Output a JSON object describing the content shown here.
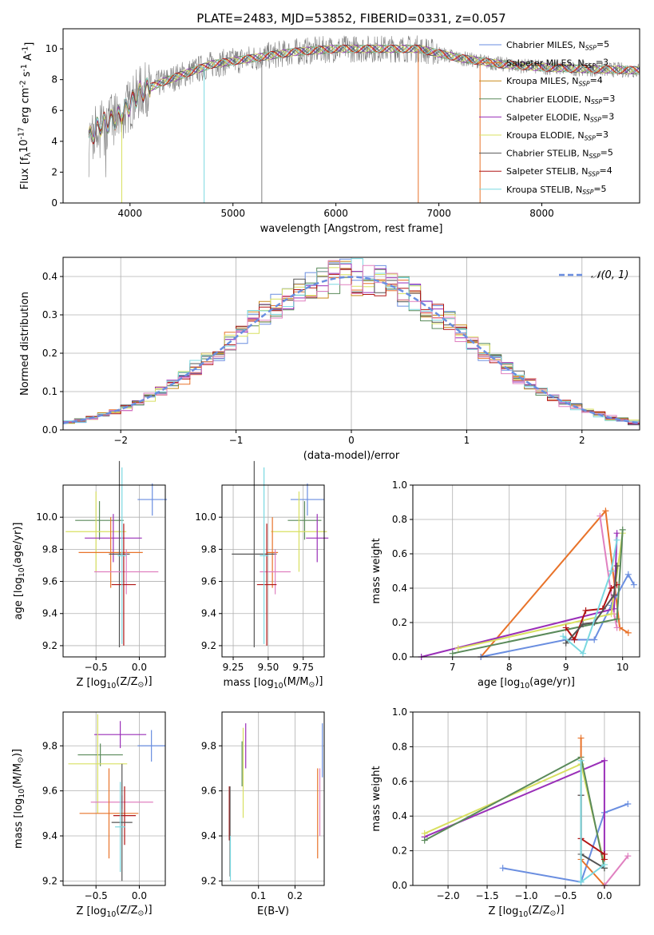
{
  "colors": {
    "chabrier_miles": "#6a8ee0",
    "salpeter_miles": "#e8732a",
    "kroupa_miles": "#c98a1a",
    "chabrier_elodie": "#5a8a5a",
    "salpeter_elodie": "#9a2fb8",
    "kroupa_elodie": "#d8e060",
    "chabrier_stelib": "#555555",
    "salpeter_stelib": "#b01515",
    "kroupa_stelib": "#7ad8e0",
    "pink": "#e080c0",
    "data": "#808080",
    "normal": "#6a8ee0",
    "grid": "#b0b0b0"
  },
  "chart_data": [
    {
      "id": "spectrum",
      "type": "line",
      "title": "PLATE=2483, MJD=53852, FIBERID=0331, z=0.057",
      "xlabel": "wavelength [Angstrom, rest frame]",
      "ylabel": "Flux [f$_\\lambda$10$^{-17}$ erg cm$^{-2}$ s$^{-1}$ A$^{-1}$]",
      "xlim": [
        3350,
        8950
      ],
      "ylim": [
        0,
        11.3
      ],
      "xticks": [
        4000,
        5000,
        6000,
        7000,
        8000
      ],
      "yticks": [
        0,
        2,
        4,
        6,
        8,
        10
      ],
      "legend_position": "top-right",
      "legend": [
        {
          "name": "Chabrier MILES, N",
          "sub": "SSP",
          "eq": "=5"
        },
        {
          "name": "Salpeter MILES, N",
          "sub": "SSP",
          "eq": "=3"
        },
        {
          "name": "Kroupa MILES, N",
          "sub": "SSP",
          "eq": "=4"
        },
        {
          "name": "Chabrier ELODIE, N",
          "sub": "SSP",
          "eq": "=3"
        },
        {
          "name": "Salpeter ELODIE, N",
          "sub": "SSP",
          "eq": "=3"
        },
        {
          "name": "Kroupa ELODIE, N",
          "sub": "SSP",
          "eq": "=3"
        },
        {
          "name": "Chabrier STELIB, N",
          "sub": "SSP",
          "eq": "=5"
        },
        {
          "name": "Salpeter STELIB, N",
          "sub": "SSP",
          "eq": "=4"
        },
        {
          "name": "Kroupa STELIB, N",
          "sub": "SSP",
          "eq": "=5"
        }
      ],
      "continuum_x": [
        3600,
        3650,
        3700,
        3800,
        3900,
        4000,
        4100,
        4300,
        4500,
        4800,
        5200,
        5600,
        6000,
        6400,
        6800,
        7200,
        7600,
        8000,
        8400,
        8950
      ],
      "continuum_y": [
        4.2,
        4.6,
        5.0,
        5.3,
        5.6,
        6.4,
        7.2,
        7.8,
        8.3,
        9.0,
        9.4,
        9.8,
        10.0,
        10.0,
        10.0,
        9.4,
        9.0,
        8.8,
        8.7,
        8.6
      ],
      "data_range": [
        3600,
        8950
      ],
      "drops": [
        3920,
        4720,
        5280,
        6800,
        7400
      ]
    },
    {
      "id": "residuals",
      "type": "histogram",
      "xlabel": "(data-model)/error",
      "ylabel": "Normed distribution",
      "xlim": [
        -2.5,
        2.5
      ],
      "ylim": [
        0,
        0.45
      ],
      "xticks": [
        -2,
        -1,
        0,
        1,
        2
      ],
      "xtick_labels": [
        "−2",
        "−1",
        "0",
        "1",
        "2"
      ],
      "yticks": [
        0.0,
        0.1,
        0.2,
        0.3,
        0.4
      ],
      "ytick_labels": [
        "0.0",
        "0.1",
        "0.2",
        "0.3",
        "0.4"
      ],
      "legend": "$\\mathcal{N}(0,1)$",
      "legend_position": "top-right",
      "bin_width": 0.1
    },
    {
      "id": "age_vs_Z",
      "type": "errorbar",
      "xlabel": "Z [log$_{10}$(Z/Z$_\\odot$)]",
      "ylabel": "age  [log$_{10}$(age/yr)]",
      "xlim": [
        -0.88,
        0.3
      ],
      "ylim": [
        9.13,
        10.2
      ],
      "xticks": [
        -0.5,
        0.0
      ],
      "xtick_labels": [
        "−0.5",
        "0.0"
      ],
      "yticks": [
        9.2,
        9.4,
        9.6,
        9.8,
        10.0
      ],
      "ytick_labels": [
        "9.2",
        "9.4",
        "9.6",
        "9.8",
        "10.0"
      ],
      "points": [
        {
          "c": "chabrier_miles",
          "x": 0.15,
          "y": 10.11,
          "xe": 0.17,
          "ye": 0.1
        },
        {
          "c": "chabrier_elodie",
          "x": -0.46,
          "y": 9.98,
          "xe": 0.28,
          "ye": 0.12
        },
        {
          "c": "kroupa_elodie",
          "x": -0.5,
          "y": 9.91,
          "xe": 0.35,
          "ye": 0.25
        },
        {
          "c": "salpeter_elodie",
          "x": -0.3,
          "y": 9.87,
          "xe": 0.33,
          "ye": 0.15
        },
        {
          "c": "salpeter_miles",
          "x": -0.33,
          "y": 9.78,
          "xe": 0.37,
          "ye": 0.22
        },
        {
          "c": "chabrier_stelib",
          "x": -0.23,
          "y": 9.77,
          "xe": 0.12,
          "ye": 0.58
        },
        {
          "c": "pink",
          "x": -0.15,
          "y": 9.66,
          "xe": 0.37,
          "ye": 0.14
        },
        {
          "c": "salpeter_stelib",
          "x": -0.18,
          "y": 9.58,
          "xe": 0.14,
          "ye": 0.38
        },
        {
          "c": "kroupa_stelib",
          "x": -0.2,
          "y": 9.76,
          "xe": 0.05,
          "ye": 0.55
        }
      ]
    },
    {
      "id": "age_vs_mass",
      "type": "errorbar",
      "xlabel": "mass [log$_{10}$(M/M$_\\odot$)]",
      "ylabel": "",
      "xlim": [
        9.17,
        9.9
      ],
      "ylim": [
        9.13,
        10.2
      ],
      "xticks": [
        9.25,
        9.5,
        9.75
      ],
      "xtick_labels": [
        "9.25",
        "9.50",
        "9.75"
      ],
      "yticks": [
        9.2,
        9.4,
        9.6,
        9.8,
        10.0
      ],
      "ytick_labels": [
        "9.2",
        "9.4",
        "9.6",
        "9.8",
        "10.0"
      ],
      "points": [
        {
          "c": "chabrier_miles",
          "x": 9.78,
          "y": 10.11,
          "xe": 0.12,
          "ye": 0.1
        },
        {
          "c": "chabrier_elodie",
          "x": 9.76,
          "y": 9.98,
          "xe": 0.12,
          "ye": 0.12
        },
        {
          "c": "kroupa_elodie",
          "x": 9.72,
          "y": 9.91,
          "xe": 0.2,
          "ye": 0.25
        },
        {
          "c": "salpeter_elodie",
          "x": 9.85,
          "y": 9.87,
          "xe": 0.08,
          "ye": 0.15
        },
        {
          "c": "salpeter_miles",
          "x": 9.53,
          "y": 9.78,
          "xe": 0.04,
          "ye": 0.22
        },
        {
          "c": "chabrier_stelib",
          "x": 9.4,
          "y": 9.77,
          "xe": 0.16,
          "ye": 0.58
        },
        {
          "c": "pink",
          "x": 9.55,
          "y": 9.66,
          "xe": 0.11,
          "ye": 0.14
        },
        {
          "c": "salpeter_stelib",
          "x": 9.49,
          "y": 9.58,
          "xe": 0.07,
          "ye": 0.38
        },
        {
          "c": "kroupa_stelib",
          "x": 9.47,
          "y": 9.76,
          "xe": 0.03,
          "ye": 0.55
        }
      ]
    },
    {
      "id": "weight_vs_age",
      "type": "line",
      "xlabel": "age  [log$_{10}$(age/yr)]",
      "ylabel": "mass weight",
      "xlim": [
        6.3,
        10.3
      ],
      "ylim": [
        0,
        1
      ],
      "xticks": [
        7,
        8,
        9,
        10
      ],
      "xtick_labels": [
        "7",
        "8",
        "9",
        "10"
      ],
      "yticks": [
        0.0,
        0.2,
        0.4,
        0.6,
        0.8,
        1.0
      ],
      "ytick_labels": [
        "0.0",
        "0.2",
        "0.4",
        "0.6",
        "0.8",
        "1.0"
      ],
      "series": [
        {
          "c": "salpeter_miles",
          "x": [
            7.5,
            9.7,
            9.95,
            10.1
          ],
          "y": [
            0.0,
            0.85,
            0.17,
            0.14
          ]
        },
        {
          "c": "pink",
          "x": [
            9.6,
            9.85,
            9.9
          ],
          "y": [
            0.82,
            0.25,
            0.17
          ]
        },
        {
          "c": "chabrier_miles",
          "x": [
            7.5,
            9.0,
            9.5,
            9.8,
            10.1,
            10.2
          ],
          "y": [
            0.0,
            0.1,
            0.1,
            0.3,
            0.48,
            0.42
          ]
        },
        {
          "c": "salpeter_elodie",
          "x": [
            6.45,
            9.85,
            9.9
          ],
          "y": [
            0.0,
            0.28,
            0.72
          ]
        },
        {
          "c": "kroupa_elodie",
          "x": [
            7.1,
            9.8,
            10.0
          ],
          "y": [
            0.05,
            0.25,
            0.72
          ]
        },
        {
          "c": "chabrier_elodie",
          "x": [
            7.0,
            9.9,
            10.0
          ],
          "y": [
            0.02,
            0.22,
            0.74
          ]
        },
        {
          "c": "salpeter_stelib",
          "x": [
            9.0,
            9.15,
            9.35,
            9.65,
            9.8,
            9.9
          ],
          "y": [
            0.17,
            0.1,
            0.27,
            0.28,
            0.4,
            0.42
          ]
        },
        {
          "c": "chabrier_stelib",
          "x": [
            9.0,
            9.3,
            9.5,
            9.85,
            9.9
          ],
          "y": [
            0.08,
            0.19,
            0.2,
            0.36,
            0.53
          ]
        },
        {
          "c": "kroupa_stelib",
          "x": [
            8.95,
            9.3,
            9.8,
            9.9
          ],
          "y": [
            0.12,
            0.02,
            0.5,
            0.68
          ]
        }
      ]
    },
    {
      "id": "mass_vs_Z",
      "type": "errorbar",
      "xlabel": "Z [log$_{10}$(Z/Z$_\\odot$)]",
      "ylabel": "mass [log$_{10}$(M/M$_\\odot$)]",
      "xlim": [
        -0.88,
        0.3
      ],
      "ylim": [
        9.18,
        9.95
      ],
      "xticks": [
        -0.5,
        0.0
      ],
      "xtick_labels": [
        "−0.5",
        "0.0"
      ],
      "yticks": [
        9.2,
        9.4,
        9.6,
        9.8
      ],
      "ytick_labels": [
        "9.2",
        "9.4",
        "9.6",
        "9.8"
      ],
      "points": [
        {
          "c": "chabrier_miles",
          "x": 0.14,
          "y": 9.8,
          "xe": 0.16,
          "ye": 0.07
        },
        {
          "c": "salpeter_elodie",
          "x": -0.22,
          "y": 9.85,
          "xe": 0.3,
          "ye": 0.06
        },
        {
          "c": "chabrier_elodie",
          "x": -0.45,
          "y": 9.76,
          "xe": 0.26,
          "ye": 0.05
        },
        {
          "c": "kroupa_elodie",
          "x": -0.48,
          "y": 9.72,
          "xe": 0.34,
          "ye": 0.22
        },
        {
          "c": "pink",
          "x": -0.2,
          "y": 9.55,
          "xe": 0.36,
          "ye": 0.03
        },
        {
          "c": "salpeter_miles",
          "x": -0.35,
          "y": 9.5,
          "xe": 0.34,
          "ye": 0.2
        },
        {
          "c": "salpeter_stelib",
          "x": -0.17,
          "y": 9.49,
          "xe": 0.13,
          "ye": 0.13
        },
        {
          "c": "chabrier_stelib",
          "x": -0.2,
          "y": 9.46,
          "xe": 0.12,
          "ye": 0.26
        },
        {
          "c": "kroupa_stelib",
          "x": -0.22,
          "y": 9.44,
          "xe": 0.06,
          "ye": 0.2
        }
      ]
    },
    {
      "id": "mass_vs_ebv",
      "type": "errorbar",
      "xlabel": "E(B-V)",
      "ylabel": "",
      "xlim": [
        0.0,
        0.28
      ],
      "ylim": [
        9.18,
        9.95
      ],
      "xticks": [
        0.1,
        0.2
      ],
      "xtick_labels": [
        "0.1",
        "0.2"
      ],
      "yticks": [
        9.2,
        9.4,
        9.6,
        9.8
      ],
      "ytick_labels": [
        "9.2",
        "9.4",
        "9.6",
        "9.8"
      ],
      "points": [
        {
          "c": "chabrier_miles",
          "x": 0.275,
          "y": 9.78,
          "xe": 0,
          "ye": 0.12
        },
        {
          "c": "salpeter_elodie",
          "x": 0.065,
          "y": 9.8,
          "xe": 0,
          "ye": 0.1
        },
        {
          "c": "chabrier_elodie",
          "x": 0.055,
          "y": 9.72,
          "xe": 0,
          "ye": 0.1
        },
        {
          "c": "kroupa_elodie",
          "x": 0.058,
          "y": 9.68,
          "xe": 0,
          "ye": 0.2
        },
        {
          "c": "pink",
          "x": 0.268,
          "y": 9.55,
          "xe": 0,
          "ye": 0.15
        },
        {
          "c": "salpeter_miles",
          "x": 0.262,
          "y": 9.5,
          "xe": 0,
          "ye": 0.2
        },
        {
          "c": "salpeter_stelib",
          "x": 0.02,
          "y": 9.5,
          "xe": 0,
          "ye": 0.12
        },
        {
          "c": "chabrier_stelib",
          "x": 0.022,
          "y": 9.42,
          "xe": 0,
          "ye": 0.2
        },
        {
          "c": "kroupa_stelib",
          "x": 0.023,
          "y": 9.3,
          "xe": 0,
          "ye": 0.1
        }
      ]
    },
    {
      "id": "weight_vs_Z",
      "type": "line",
      "xlabel": "Z [log$_{10}$(Z/Z$_\\odot$)]",
      "ylabel": "mass weight",
      "xlim": [
        -2.45,
        0.45
      ],
      "ylim": [
        0,
        1
      ],
      "xticks": [
        -2.0,
        -1.5,
        -1.0,
        -0.5,
        0.0
      ],
      "xtick_labels": [
        "−2.0",
        "−1.5",
        "−1.0",
        "−0.5",
        "0.0"
      ],
      "yticks": [
        0.0,
        0.2,
        0.4,
        0.6,
        0.8,
        1.0
      ],
      "ytick_labels": [
        "0.0",
        "0.2",
        "0.4",
        "0.6",
        "0.8",
        "1.0"
      ],
      "series": [
        {
          "c": "chabrier_miles",
          "x": [
            -1.3,
            -0.3,
            0.0,
            0.3
          ],
          "y": [
            0.1,
            0.02,
            0.42,
            0.47
          ]
        },
        {
          "c": "salpeter_elodie",
          "x": [
            -2.3,
            0.0,
            0.0
          ],
          "y": [
            0.28,
            0.72,
            0.18
          ]
        },
        {
          "c": "kroupa_elodie",
          "x": [
            -2.3,
            -0.3,
            0.0
          ],
          "y": [
            0.3,
            0.7,
            0.12
          ]
        },
        {
          "c": "chabrier_elodie",
          "x": [
            -2.3,
            -0.3,
            0.0
          ],
          "y": [
            0.26,
            0.74,
            0.1
          ]
        },
        {
          "c": "salpeter_miles",
          "x": [
            -0.3,
            -0.3,
            0.0
          ],
          "y": [
            0.85,
            0.15,
            0.0
          ]
        },
        {
          "c": "pink",
          "x": [
            0.0,
            0.3
          ],
          "y": [
            0.0,
            0.17
          ]
        },
        {
          "c": "salpeter_stelib",
          "x": [
            -0.3,
            -0.3,
            0.0,
            0.0
          ],
          "y": [
            0.52,
            0.27,
            0.18,
            0.15
          ]
        },
        {
          "c": "chabrier_stelib",
          "x": [
            -0.3,
            -0.3,
            0.0
          ],
          "y": [
            0.52,
            0.18,
            0.1
          ]
        },
        {
          "c": "kroupa_stelib",
          "x": [
            -0.3,
            -0.3,
            0.0
          ],
          "y": [
            0.72,
            0.02,
            0.12
          ]
        }
      ]
    }
  ]
}
